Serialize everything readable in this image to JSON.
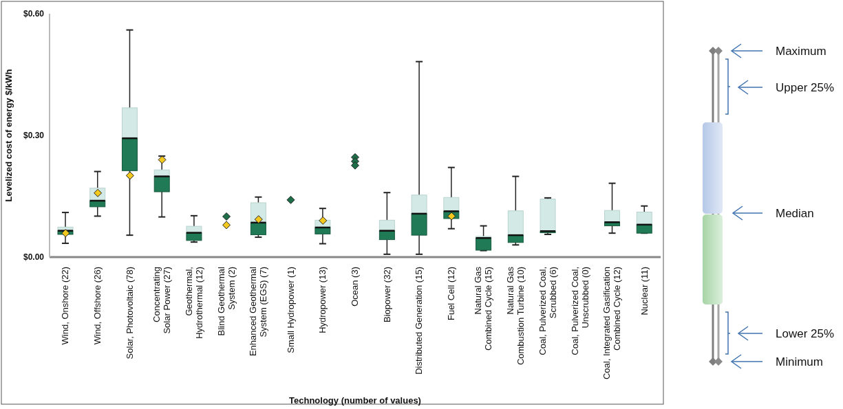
{
  "chart_data": {
    "type": "box",
    "xlabel": "Technology (number of values)",
    "ylabel": "Levelized cost of energy $/kWh",
    "categories": [
      "Wind, Onshore (22)",
      "Wind, Offshore (26)",
      "Solar, Photovoltaic (78)",
      "Concentrating\nSolar Power (27)",
      "Geothermal,\nHydrothermal (12)",
      "Blind Geothermal\nSystem (2)",
      "Enhanced Geothermal\nSystem (EGS) (7)",
      "Small Hydropower (1)",
      "Hydropower (13)",
      "Ocean (3)",
      "Biopower (32)",
      "Distributed Generation (15)",
      "Fuel Cell (12)",
      "Natural Gas\nCombined Cycle (15)",
      "Natural Gas\nCombustion Turbine (10)",
      "Coal, Pulverized Coal,\nScrubbed (6)",
      "Coal, Pulverized Coal,\nUnscrubbed (0)",
      "Coal, Integrated Gasification\nCombined Cycle (12)",
      "Nuclear (11)"
    ],
    "ylim": [
      0,
      0.6
    ],
    "yticks": [
      {
        "value": 0,
        "label": "$0.00"
      },
      {
        "value": 0.3,
        "label": "$0.30"
      },
      {
        "value": 0.6,
        "label": "$0.60"
      }
    ],
    "marker": "diamond",
    "series": [
      {
        "type": "box",
        "color": "#1f7a55",
        "boxes": [
          {
            "low": 0.034,
            "q1": 0.056,
            "median": 0.065,
            "q3": 0.074,
            "high": 0.11
          },
          {
            "low": 0.101,
            "q1": 0.124,
            "median": 0.139,
            "q3": 0.17,
            "high": 0.211
          },
          {
            "low": 0.054,
            "q1": 0.213,
            "median": 0.293,
            "q3": 0.368,
            "high": 0.56
          },
          {
            "low": 0.099,
            "q1": 0.161,
            "median": 0.199,
            "q3": 0.215,
            "high": 0.249
          },
          {
            "low": 0.037,
            "q1": 0.041,
            "median": 0.06,
            "q3": 0.076,
            "high": 0.102
          },
          null,
          {
            "low": 0.049,
            "q1": 0.055,
            "median": 0.085,
            "q3": 0.134,
            "high": 0.148
          },
          null,
          {
            "low": 0.033,
            "q1": 0.057,
            "median": 0.073,
            "q3": 0.091,
            "high": 0.12
          },
          null,
          {
            "low": 0.007,
            "q1": 0.043,
            "median": 0.065,
            "q3": 0.091,
            "high": 0.159
          },
          {
            "low": 0.007,
            "q1": 0.054,
            "median": 0.107,
            "q3": 0.153,
            "high": 0.482
          },
          {
            "low": 0.07,
            "q1": 0.095,
            "median": 0.113,
            "q3": 0.147,
            "high": 0.221
          },
          {
            "low": 0.016,
            "q1": 0.017,
            "median": 0.047,
            "q3": 0.051,
            "high": 0.077
          },
          {
            "low": 0.03,
            "q1": 0.036,
            "median": 0.054,
            "q3": 0.114,
            "high": 0.199
          },
          {
            "low": 0.056,
            "q1": 0.06,
            "median": 0.064,
            "q3": 0.143,
            "high": 0.146
          },
          null,
          {
            "low": 0.059,
            "q1": 0.077,
            "median": 0.086,
            "q3": 0.115,
            "high": 0.182
          },
          {
            "low": 0.059,
            "q1": 0.059,
            "median": 0.08,
            "q3": 0.111,
            "high": 0.126
          }
        ]
      },
      {
        "type": "scatter",
        "color": "#f2c81e",
        "x": [
          "Wind, Onshore (22)",
          "Wind, Offshore (26)",
          "Solar, Photovoltaic (78)",
          "Concentrating\nSolar Power (27)",
          "Blind Geothermal\nSystem (2)",
          "Enhanced Geothermal\nSystem (EGS) (7)",
          "Hydropower (13)",
          "Fuel Cell (12)"
        ],
        "values": [
          0.059,
          0.158,
          0.201,
          0.24,
          0.079,
          0.093,
          0.09,
          0.101
        ]
      },
      {
        "type": "scatter",
        "color": "#1f6e4a",
        "x": [
          "Blind Geothermal\nSystem (2)",
          "Small Hydropower (1)",
          "Ocean (3)",
          "Ocean (3)",
          "Ocean (3)"
        ],
        "values": [
          0.1,
          0.141,
          0.246,
          0.236,
          0.226
        ]
      }
    ],
    "annotations": [
      "Maximum",
      "Upper 25%",
      "Median",
      "Lower 25%",
      "Minimum"
    ]
  }
}
